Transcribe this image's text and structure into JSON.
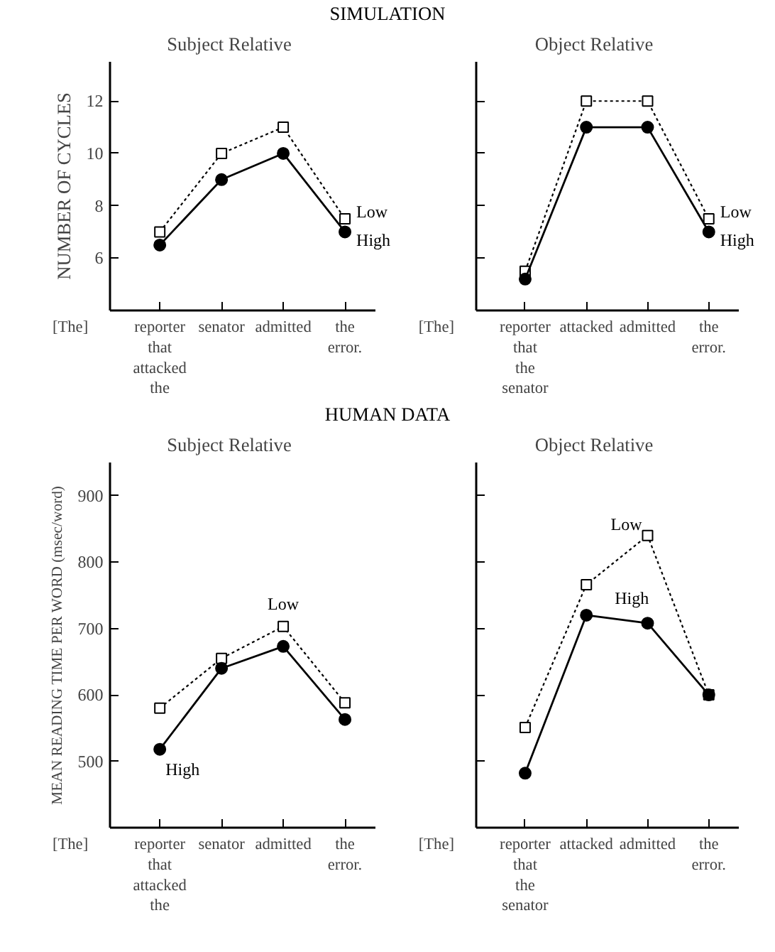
{
  "chart_data": [
    {
      "type": "line",
      "title": "Subject Relative",
      "ylabel": "NUMBER OF CYCLES",
      "categories": [
        "reporter\nthat\nattacked\nthe",
        "senator",
        "admitted",
        "the\nerror."
      ],
      "ylim": [
        4,
        13.5
      ],
      "yticks": [
        6,
        8,
        10,
        12
      ],
      "grid": false,
      "legend": false,
      "series": [
        {
          "name": "Low",
          "color": "#000000",
          "values": [
            7,
            10,
            11,
            7.5
          ],
          "marker": "square",
          "line_style": "dotted"
        },
        {
          "name": "High",
          "color": "#000000",
          "values": [
            6.5,
            9,
            10,
            7
          ],
          "marker": "circle",
          "line_style": "solid"
        }
      ],
      "annotations": [
        "SIMULATION",
        "[The]"
      ]
    },
    {
      "type": "line",
      "title": "Object Relative",
      "categories": [
        "reporter\nthat\nthe\nsenator",
        "attacked",
        "admitted",
        "the\nerror."
      ],
      "ylim": [
        4,
        13.5
      ],
      "yticks": [
        6,
        8,
        10,
        12
      ],
      "tick_labels": "x",
      "grid": false,
      "legend": false,
      "series": [
        {
          "name": "Low",
          "color": "#000000",
          "values": [
            5.5,
            12,
            12,
            7.5
          ],
          "marker": "square",
          "line_style": "dotted"
        },
        {
          "name": "High",
          "color": "#000000",
          "values": [
            5.2,
            11,
            11,
            7
          ],
          "marker": "circle",
          "line_style": "solid"
        }
      ],
      "annotations": [
        "[The]"
      ]
    },
    {
      "type": "line",
      "title": "Subject Relative",
      "ylabel": "MEAN READING TIME PER WORD (msec/word)",
      "categories": [
        "reporter\nthat\nattacked\nthe",
        "senator",
        "admitted",
        "the\nerror."
      ],
      "ylim": [
        400,
        950
      ],
      "yticks": [
        500,
        600,
        700,
        800,
        900
      ],
      "grid": false,
      "legend": false,
      "series": [
        {
          "name": "Low",
          "color": "#000000",
          "values": [
            580,
            655,
            703,
            588
          ],
          "marker": "square",
          "line_style": "dotted"
        },
        {
          "name": "High",
          "color": "#000000",
          "values": [
            518,
            640,
            673,
            563
          ],
          "marker": "circle",
          "line_style": "solid"
        }
      ],
      "annotations": [
        "HUMAN DATA",
        "[The]"
      ]
    },
    {
      "type": "line",
      "title": "Object Relative",
      "categories": [
        "reporter\nthat\nthe\nsenator",
        "attacked",
        "admitted",
        "the\nerror."
      ],
      "ylim": [
        400,
        950
      ],
      "yticks": [
        500,
        600,
        700,
        800,
        900
      ],
      "tick_labels": "x",
      "grid": false,
      "legend": false,
      "series": [
        {
          "name": "Low",
          "color": "#000000",
          "values": [
            551,
            766,
            840,
            600
          ],
          "marker": "square",
          "line_style": "dotted"
        },
        {
          "name": "High",
          "color": "#000000",
          "values": [
            482,
            720,
            708,
            600
          ],
          "marker": "circle",
          "line_style": "solid"
        }
      ],
      "annotations": [
        "[The]"
      ]
    }
  ]
}
